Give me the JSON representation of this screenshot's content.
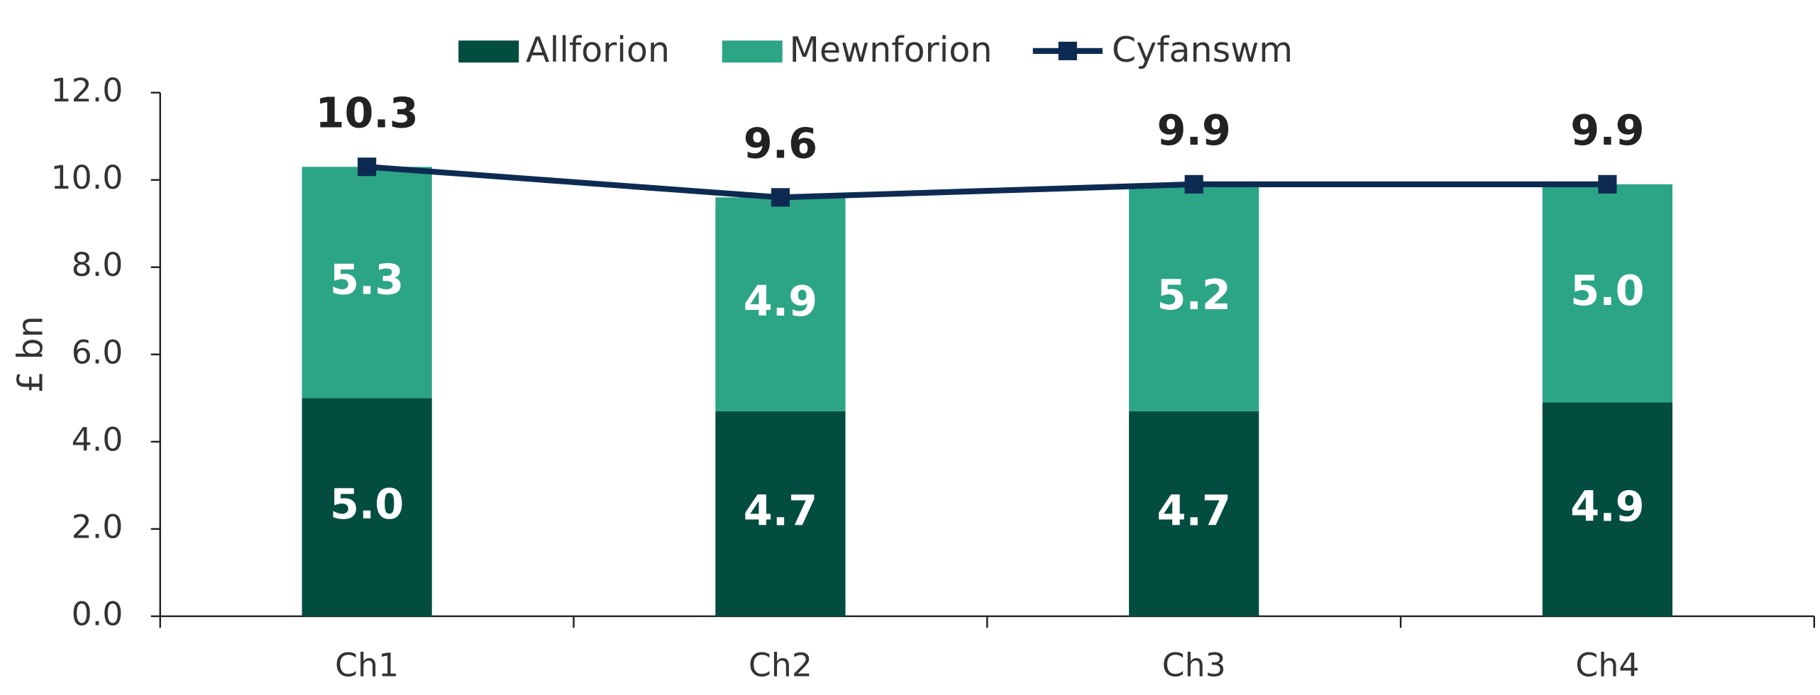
{
  "chart_data": {
    "type": "bar",
    "stacked": true,
    "y_label": "£ bn",
    "categories": [
      "Ch1",
      "Ch2",
      "Ch3",
      "Ch4"
    ],
    "series": [
      {
        "name": "Allforion",
        "color": "#034d40",
        "values": [
          5.0,
          4.7,
          4.7,
          4.9
        ],
        "value_labels": [
          "5.0",
          "4.7",
          "4.7",
          "4.9"
        ]
      },
      {
        "name": "Mewnforion",
        "color": "#2ca587",
        "values": [
          5.3,
          4.9,
          5.2,
          5.0
        ],
        "value_labels": [
          "5.3",
          "4.9",
          "5.2",
          "5.0"
        ]
      },
      {
        "name": "Cyfanswm",
        "type": "line",
        "color": "#0d2b52",
        "values": [
          10.3,
          9.6,
          9.9,
          9.9
        ],
        "value_labels": [
          "10.3",
          "9.6",
          "9.9",
          "9.9"
        ]
      }
    ],
    "ylim": [
      0,
      12
    ],
    "yticks": [
      {
        "value": 0,
        "label": "0.0"
      },
      {
        "value": 2,
        "label": "2.0"
      },
      {
        "value": 4,
        "label": "4.0"
      },
      {
        "value": 6,
        "label": "6.0"
      },
      {
        "value": 8,
        "label": "8.0"
      },
      {
        "value": 10,
        "label": "10.0"
      },
      {
        "value": 12,
        "label": "12.0"
      }
    ],
    "grid": false,
    "legend": "top"
  }
}
